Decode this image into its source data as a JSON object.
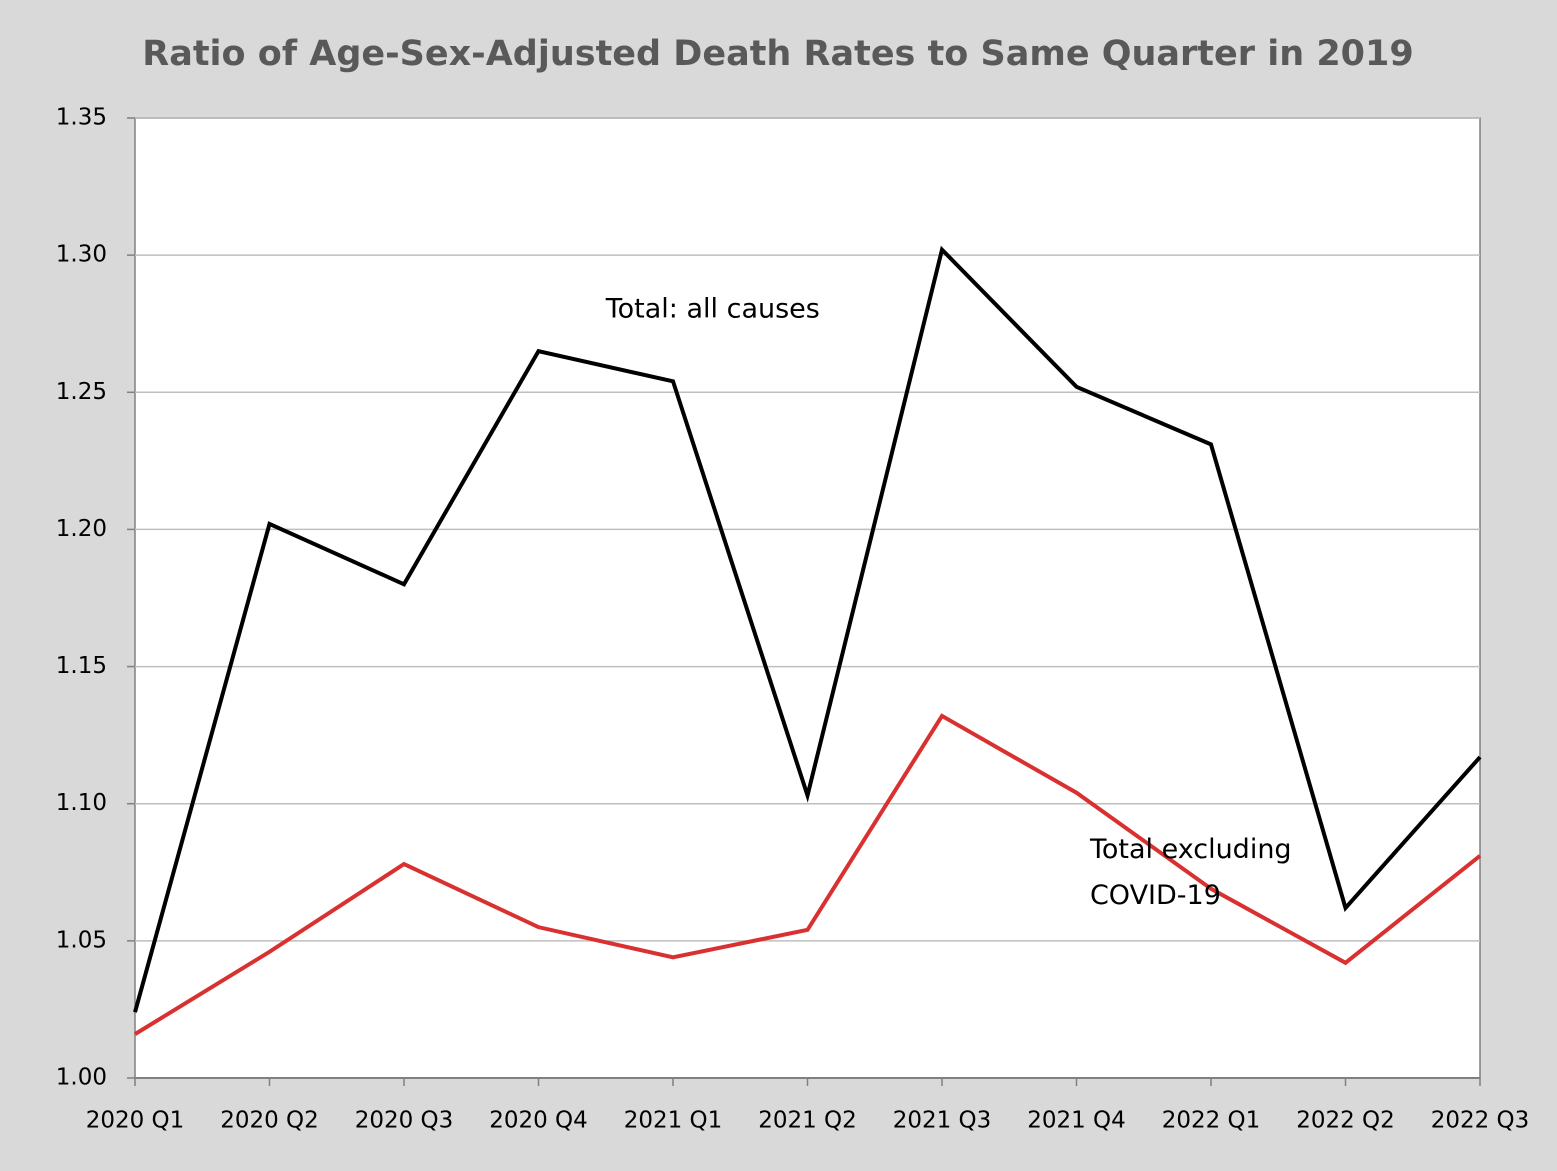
{
  "chart_data": {
    "type": "line",
    "title": "Ratio of Age-Sex-Adjusted Death Rates to Same Quarter in 2019",
    "categories": [
      "2020 Q1",
      "2020 Q2",
      "2020 Q3",
      "2020 Q4",
      "2021 Q1",
      "2021 Q2",
      "2021 Q3",
      "2021 Q4",
      "2022 Q1",
      "2022 Q2",
      "2022 Q3"
    ],
    "series": [
      {
        "color": "#000000",
        "values": [
          1.024,
          1.202,
          1.18,
          1.265,
          1.254,
          1.103,
          1.302,
          1.252,
          1.231,
          1.062,
          1.117
        ]
      },
      {
        "color": "#d93030",
        "values": [
          1.016,
          1.046,
          1.078,
          1.055,
          1.044,
          1.054,
          1.132,
          1.104,
          1.069,
          1.042,
          1.081
        ]
      }
    ],
    "annotations": [
      {
        "lines": [
          "Total: all causes"
        ],
        "x": 3.5,
        "y": 1.28
      },
      {
        "lines": [
          "Total excluding",
          "COVID-19"
        ],
        "x": 7.1,
        "y": 1.083
      }
    ],
    "ylim": [
      1.0,
      1.35
    ],
    "yticks": [
      {
        "value": 1.0,
        "label": "1.00"
      },
      1.05,
      {
        "value": 1.1,
        "label": "1.10"
      },
      1.15,
      {
        "value": 1.2,
        "label": "1.20"
      },
      1.25,
      {
        "value": 1.3,
        "label": "1.30"
      },
      1.35
    ],
    "grid": true
  }
}
